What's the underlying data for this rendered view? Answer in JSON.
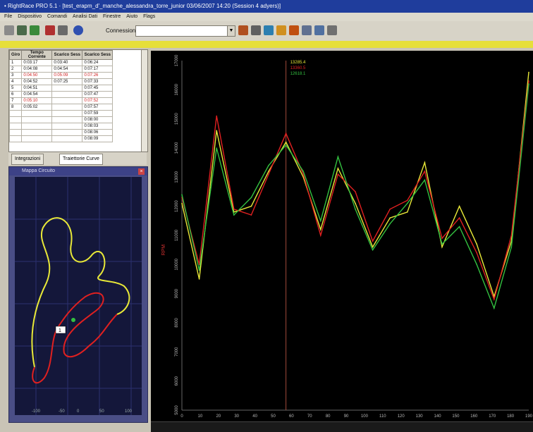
{
  "window": {
    "title": "• RightRace PRO 5.1 · [test_erapm_d'_manche_alessandra_torre_junior 03/06/2007 14:20 (Session 4 adyers)]"
  },
  "menu": [
    "File",
    "Dispositivo",
    "Comandi",
    "Analisi Dati",
    "Finestre",
    "Aiuto",
    "Flags"
  ],
  "toolbar": {
    "icons": [
      "trash-icon",
      "chip-icon",
      "upload-icon",
      "stopwatch-icon",
      "print-icon",
      "connect-icon",
      "chart-icon",
      "refresh-icon",
      "hand-icon",
      "ruler-icon",
      "gauge-icon",
      "doc-icon",
      "export-icon",
      "edit-icon"
    ],
    "connect_label": "Connessione a",
    "connect_value": ""
  },
  "laps": {
    "headers": [
      "Giro",
      "Tempo Corrente",
      "Scarico Sess",
      "Scarico Sess"
    ],
    "rows": [
      [
        "1",
        "0:03:17",
        "0:03:40",
        "0:06:24"
      ],
      [
        "2",
        "0:04:08",
        "0:04:54",
        "0:07:17"
      ],
      [
        "3",
        "0:04:50",
        "0:05:09",
        "0:07:26"
      ],
      [
        "4",
        "0:04:52",
        "0:07:25",
        "0:07:33"
      ],
      [
        "5",
        "0:04:51",
        "",
        "0:07:45"
      ],
      [
        "6",
        "0:04:54",
        "",
        "0:07:47"
      ],
      [
        "7",
        "0:05:10",
        "",
        "0:07:52"
      ],
      [
        "8",
        "0:05:02",
        "",
        "0:07:57"
      ],
      [
        "",
        "",
        "",
        "0:07:59"
      ],
      [
        "",
        "",
        "",
        "0:08:00"
      ],
      [
        "",
        "",
        "",
        "0:08:03"
      ],
      [
        "",
        "",
        "",
        "0:08:06"
      ],
      [
        "",
        "",
        "",
        "0:08:09"
      ]
    ],
    "highlight_red_rows": [
      2,
      6
    ]
  },
  "tabs": {
    "t1": "Integrazioni",
    "t2": "Traiettorie Curve"
  },
  "map": {
    "title": "Mappa Circuito",
    "marker_label": "1",
    "axis_bottom": [
      "-100",
      "-50",
      "0",
      "50",
      "100"
    ]
  },
  "chart_data": {
    "type": "line",
    "x": [
      0,
      5,
      10,
      15,
      20,
      25,
      30,
      35,
      40,
      45,
      50,
      55,
      60,
      65,
      70,
      75,
      80,
      85,
      90,
      95,
      100
    ],
    "ylim": [
      5000,
      17000
    ],
    "yticks": [
      "17000",
      "16000",
      "15000",
      "14000",
      "13000",
      "12000",
      "11000",
      "10000",
      "9000",
      "8000",
      "7000",
      "6000",
      "5000"
    ],
    "xticks": [
      "0",
      "10",
      "20",
      "30",
      "40",
      "50",
      "60",
      "70",
      "80",
      "90",
      "100",
      "110",
      "120",
      "130",
      "140",
      "150",
      "160",
      "170",
      "180",
      "190"
    ],
    "ylabel": "RPM",
    "legend": [
      "13285.4",
      "13360.5",
      "12618.1"
    ],
    "series": [
      {
        "name": "13285.4",
        "color": "#e8e838",
        "values": [
          12100,
          9500,
          14600,
          11800,
          12000,
          13200,
          14200,
          13000,
          11200,
          13300,
          12100,
          10600,
          11600,
          11800,
          13500,
          10600,
          12000,
          10700,
          8900,
          10800,
          16600
        ]
      },
      {
        "name": "13360.5",
        "color": "#e02020",
        "values": [
          12300,
          10000,
          15100,
          11900,
          11700,
          13100,
          14500,
          13100,
          11000,
          13100,
          12500,
          10800,
          11900,
          12200,
          13200,
          10900,
          11600,
          10400,
          8800,
          11000,
          16300
        ]
      },
      {
        "name": "12618.1",
        "color": "#33c040",
        "values": [
          12400,
          9800,
          14000,
          11700,
          12300,
          13400,
          14100,
          13200,
          11500,
          13700,
          11900,
          10500,
          11400,
          12100,
          12900,
          10700,
          11300,
          10000,
          8500,
          10600,
          16200
        ]
      }
    ]
  }
}
